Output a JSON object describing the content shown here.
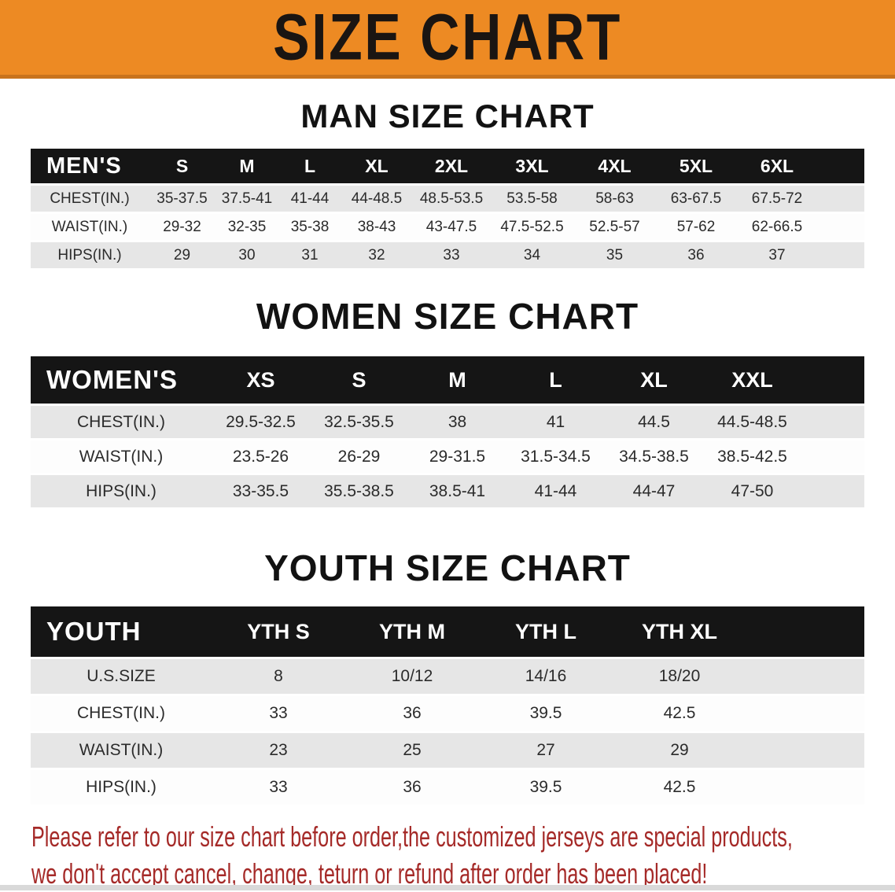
{
  "banner": {
    "title": "SIZE CHART"
  },
  "man": {
    "heading": "MAN SIZE CHART",
    "table": {
      "corner_label": "MEN'S",
      "size_columns": [
        "S",
        "M",
        "L",
        "XL",
        "2XL",
        "3XL",
        "4XL",
        "5XL",
        "6XL"
      ],
      "rows": [
        {
          "label": "CHEST(IN.)",
          "values": [
            "35-37.5",
            "37.5-41",
            "41-44",
            "44-48.5",
            "48.5-53.5",
            "53.5-58",
            "58-63",
            "63-67.5",
            "67.5-72"
          ]
        },
        {
          "label": "WAIST(IN.)",
          "values": [
            "29-32",
            "32-35",
            "35-38",
            "38-43",
            "43-47.5",
            "47.5-52.5",
            "52.5-57",
            "57-62",
            "62-66.5"
          ]
        },
        {
          "label": "HIPS(IN.)",
          "values": [
            "29",
            "30",
            "31",
            "32",
            "33",
            "34",
            "35",
            "36",
            "37"
          ]
        }
      ]
    }
  },
  "women": {
    "heading": "WOMEN SIZE CHART",
    "table": {
      "corner_label": "WOMEN'S",
      "size_columns": [
        "XS",
        "S",
        "M",
        "L",
        "XL",
        "XXL"
      ],
      "rows": [
        {
          "label": "CHEST(IN.)",
          "values": [
            "29.5-32.5",
            "32.5-35.5",
            "38",
            "41",
            "44.5",
            "44.5-48.5"
          ]
        },
        {
          "label": "WAIST(IN.)",
          "values": [
            "23.5-26",
            "26-29",
            "29-31.5",
            "31.5-34.5",
            "34.5-38.5",
            "38.5-42.5"
          ]
        },
        {
          "label": "HIPS(IN.)",
          "values": [
            "33-35.5",
            "35.5-38.5",
            "38.5-41",
            "41-44",
            "44-47",
            "47-50"
          ]
        }
      ]
    }
  },
  "youth": {
    "heading": "YOUTH SIZE CHART",
    "table": {
      "corner_label": "YOUTH",
      "size_columns": [
        "YTH S",
        "YTH M",
        "YTH L",
        "YTH XL"
      ],
      "rows": [
        {
          "label": "U.S.SIZE",
          "values": [
            "8",
            "10/12",
            "14/16",
            "18/20"
          ]
        },
        {
          "label": "CHEST(IN.)",
          "values": [
            "33",
            "36",
            "39.5",
            "42.5"
          ]
        },
        {
          "label": "WAIST(IN.)",
          "values": [
            "23",
            "25",
            "27",
            "29"
          ]
        },
        {
          "label": "HIPS(IN.)",
          "values": [
            "33",
            "36",
            "39.5",
            "42.5"
          ]
        }
      ]
    }
  },
  "disclaimer": {
    "lines": [
      "Please refer to our size chart before order,the customized jerseys are special products,",
      "we don't accept cancel, change, teturn or refund after order has been placed!"
    ]
  },
  "colors": {
    "banner_orange": "#ed8a23",
    "banner_edge": "#c9731c",
    "header_black": "#151515",
    "row_gray": "#e6e6e6",
    "row_white": "#fdfdfd",
    "disclaimer_red": "#a52a28",
    "title_black": "#1a1512"
  }
}
